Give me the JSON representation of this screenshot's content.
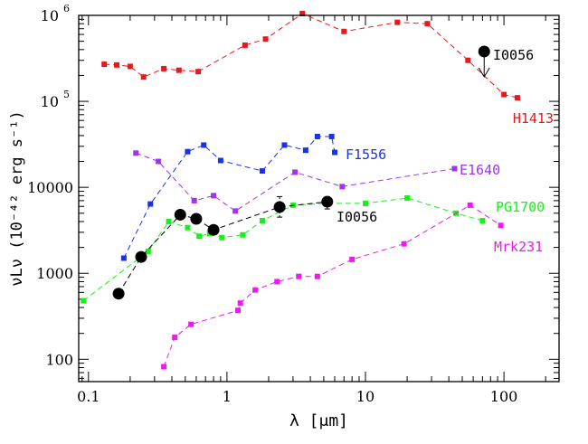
{
  "chart_data": {
    "type": "scatter",
    "title": "",
    "xlabel": "λ [μm]",
    "ylabel": "νLν (10⁻⁴² erg s⁻¹)",
    "xscale": "log",
    "yscale": "log",
    "xlim": [
      0.085,
      250
    ],
    "ylim": [
      55,
      1000000
    ],
    "grid": false,
    "x_ticks": [
      {
        "value": 0.1,
        "label": "0.1"
      },
      {
        "value": 1,
        "label": "1"
      },
      {
        "value": 10,
        "label": "10"
      },
      {
        "value": 100,
        "label": "100"
      }
    ],
    "y_ticks": [
      {
        "value": 100,
        "label": "100"
      },
      {
        "value": 1000,
        "label": "1000"
      },
      {
        "value": 10000,
        "label": "10000"
      },
      {
        "value": 100000,
        "label": "10",
        "exp": "5"
      },
      {
        "value": 1000000,
        "label": "10",
        "exp": "6"
      }
    ],
    "series": [
      {
        "name": "H1413",
        "color": "#e8191d",
        "marker": "square",
        "points": [
          [
            0.13,
            270000
          ],
          [
            0.16,
            265000
          ],
          [
            0.2,
            255000
          ],
          [
            0.25,
            192000
          ],
          [
            0.35,
            240000
          ],
          [
            0.45,
            230000
          ],
          [
            0.62,
            222000
          ],
          [
            1.35,
            450000
          ],
          [
            1.9,
            530000
          ],
          [
            3.5,
            1050000
          ],
          [
            7,
            650000
          ],
          [
            17,
            830000
          ],
          [
            28,
            800000
          ],
          [
            55,
            300000
          ],
          [
            100,
            120000
          ],
          [
            125,
            110000
          ]
        ]
      },
      {
        "name": "F1556",
        "color": "#1a32e6",
        "marker": "square",
        "points": [
          [
            0.18,
            1500
          ],
          [
            0.28,
            6400
          ],
          [
            0.52,
            26000
          ],
          [
            0.68,
            31000
          ],
          [
            0.9,
            20500
          ],
          [
            1.8,
            15500
          ],
          [
            2.6,
            31000
          ],
          [
            3.7,
            27000
          ],
          [
            4.5,
            39000
          ],
          [
            5.7,
            39000
          ],
          [
            6.0,
            25500
          ]
        ]
      },
      {
        "name": "E1640",
        "color": "#a233f0",
        "marker": "square",
        "points": [
          [
            0.22,
            25000
          ],
          [
            0.32,
            20000
          ],
          [
            0.58,
            7000
          ],
          [
            0.8,
            8000
          ],
          [
            1.15,
            5300
          ],
          [
            3.1,
            15000
          ],
          [
            6.8,
            10200
          ],
          [
            44,
            16500
          ]
        ]
      },
      {
        "name": "PG1700",
        "color": "#19f019",
        "marker": "square",
        "points": [
          [
            0.092,
            480
          ],
          [
            0.27,
            1800
          ],
          [
            0.38,
            4000
          ],
          [
            0.52,
            3400
          ],
          [
            0.63,
            2700
          ],
          [
            0.75,
            2900
          ],
          [
            0.92,
            2600
          ],
          [
            1.3,
            2800
          ],
          [
            1.8,
            4100
          ],
          [
            3.0,
            6200
          ],
          [
            5.3,
            6500
          ],
          [
            10,
            6500
          ],
          [
            20,
            7500
          ],
          [
            45,
            5000
          ],
          [
            70,
            4100
          ]
        ]
      },
      {
        "name": "Mrk231",
        "color": "#ee19ee",
        "marker": "square",
        "points": [
          [
            0.35,
            82
          ],
          [
            0.42,
            180
          ],
          [
            0.55,
            255
          ],
          [
            1.2,
            370
          ],
          [
            1.25,
            450
          ],
          [
            1.6,
            640
          ],
          [
            2.3,
            800
          ],
          [
            3.3,
            920
          ],
          [
            4.5,
            920
          ],
          [
            8,
            1450
          ],
          [
            19,
            2200
          ],
          [
            57,
            6200
          ],
          [
            95,
            3600
          ]
        ]
      },
      {
        "name": "I0056",
        "color": "#000000",
        "marker": "circle",
        "points": [
          [
            0.165,
            580
          ],
          [
            0.24,
            1550
          ],
          [
            0.46,
            4800
          ],
          [
            0.6,
            4300
          ],
          [
            0.8,
            3200
          ],
          [
            2.4,
            5900
          ],
          [
            5.3,
            6800
          ]
        ],
        "error_bars": [
          {
            "x": 2.4,
            "low": 4500,
            "high": 7800
          },
          {
            "x": 5.3,
            "low": 5600,
            "high": 7800
          }
        ]
      },
      {
        "name": "I0056",
        "color": "#000000",
        "marker": "circle",
        "upper_limit": true,
        "points": [
          [
            72,
            380000
          ]
        ]
      }
    ],
    "annotations": [
      {
        "text": "H1413",
        "x": 145,
        "y": 48000,
        "color": "#e8191d"
      },
      {
        "text": "I0056",
        "x": 72,
        "y": 380000,
        "color": "#000000"
      },
      {
        "text": "F1556",
        "x": 6.2,
        "y": 27000,
        "color": "#1a32e6"
      },
      {
        "text": "E1640",
        "x": 46,
        "y": 16000,
        "color": "#a233f0"
      },
      {
        "text": "I0056",
        "x": 5.4,
        "y": 4400,
        "color": "#000000"
      },
      {
        "text": "PG1700",
        "x": 70,
        "y": 6000,
        "color": "#19f019"
      },
      {
        "text": "Mrk231",
        "x": 70,
        "y": 2500,
        "color": "#ee19ee"
      }
    ]
  }
}
